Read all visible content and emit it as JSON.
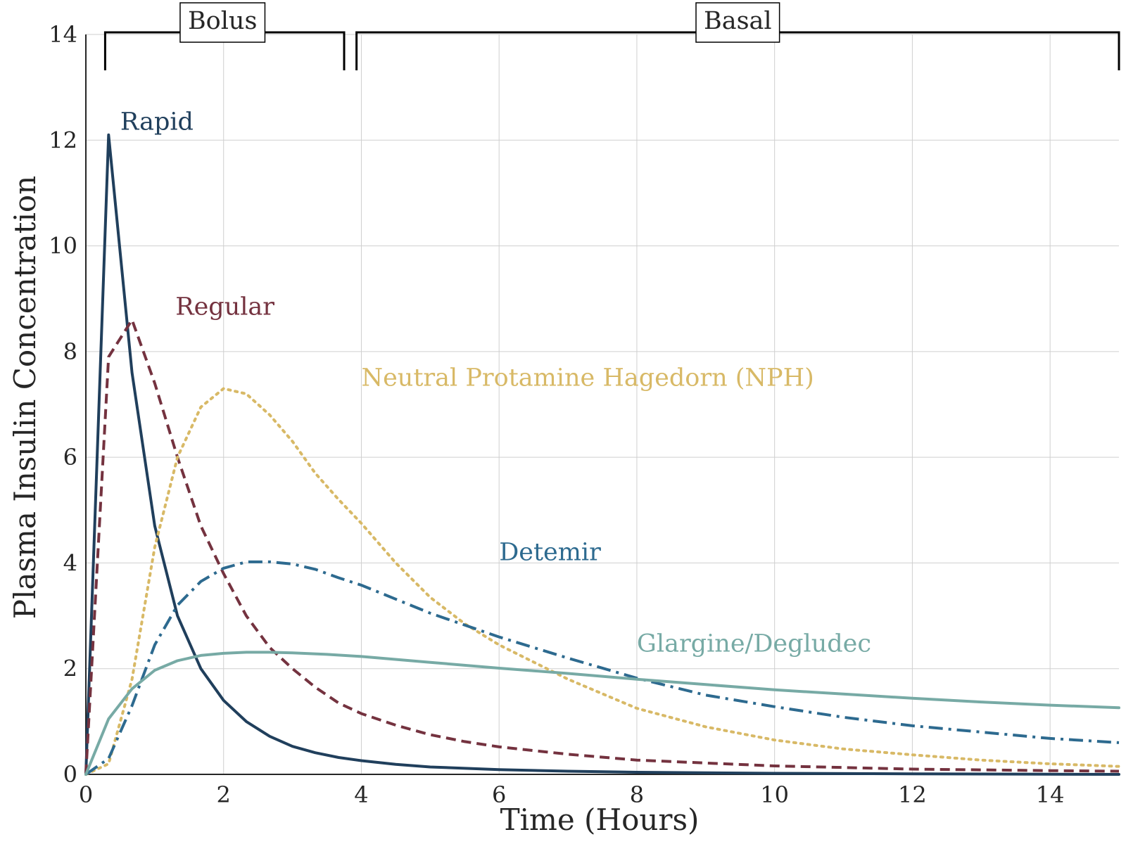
{
  "chart_data": {
    "type": "line",
    "xlabel": "Time (Hours)",
    "ylabel": "Plasma Insulin Concentration",
    "xlim": [
      0,
      15
    ],
    "ylim": [
      0,
      14
    ],
    "xticks": [
      "0",
      "2",
      "4",
      "6",
      "8",
      "10",
      "12",
      "14"
    ],
    "yticks": [
      "0",
      "2",
      "4",
      "6",
      "8",
      "10",
      "12",
      "14"
    ],
    "grid": true,
    "phases": [
      {
        "label": "Bolus",
        "start": 0.28,
        "end": 3.75
      },
      {
        "label": "Basal",
        "start": 3.93,
        "end": 15
      }
    ],
    "series": [
      {
        "name": "Rapid",
        "color": "#203f5c",
        "dash": "solid",
        "label_at": [
          0.5,
          12.2
        ],
        "x": [
          0,
          0.33,
          0.67,
          1.0,
          1.33,
          1.67,
          2.0,
          2.33,
          2.67,
          3.0,
          3.33,
          3.67,
          4.0,
          4.5,
          5.0,
          6.0,
          7.0,
          8.0,
          10.0,
          12.0,
          15.0
        ],
        "y": [
          0,
          12.1,
          7.6,
          4.7,
          3.0,
          2.0,
          1.4,
          1.0,
          0.72,
          0.53,
          0.41,
          0.32,
          0.26,
          0.19,
          0.14,
          0.09,
          0.06,
          0.04,
          0.02,
          0.01,
          0.0
        ]
      },
      {
        "name": "Regular",
        "color": "#74323f",
        "dash": "dashed",
        "label_at": [
          1.3,
          8.7
        ],
        "x": [
          0,
          0.33,
          0.67,
          1.0,
          1.33,
          1.67,
          2.0,
          2.33,
          2.67,
          3.0,
          3.33,
          3.67,
          4.0,
          4.5,
          5.0,
          5.5,
          6.0,
          7.0,
          8.0,
          10.0,
          12.0,
          14.0,
          15.0
        ],
        "y": [
          0,
          7.9,
          8.6,
          7.4,
          6.0,
          4.7,
          3.8,
          3.0,
          2.4,
          2.0,
          1.65,
          1.35,
          1.15,
          0.93,
          0.75,
          0.62,
          0.52,
          0.38,
          0.27,
          0.16,
          0.1,
          0.07,
          0.06
        ]
      },
      {
        "name": "Neutral Protamine Hagedorn (NPH)",
        "color": "#d8b966",
        "dash": "dotted",
        "label_at": [
          4.0,
          7.35
        ],
        "x": [
          0,
          0.33,
          0.67,
          1.0,
          1.33,
          1.67,
          2.0,
          2.33,
          2.67,
          3.0,
          3.33,
          3.67,
          4.0,
          4.5,
          5.0,
          5.5,
          6.0,
          7.0,
          8.0,
          9.0,
          10.0,
          11.0,
          12.0,
          13.0,
          14.0,
          15.0
        ],
        "y": [
          0,
          0.2,
          1.8,
          4.3,
          6.0,
          6.95,
          7.3,
          7.2,
          6.8,
          6.3,
          5.7,
          5.2,
          4.75,
          4.0,
          3.35,
          2.85,
          2.45,
          1.8,
          1.25,
          0.9,
          0.65,
          0.48,
          0.37,
          0.27,
          0.2,
          0.15
        ]
      },
      {
        "name": "Detemir",
        "color": "#2d6a8f",
        "dash": "dashdot",
        "label_at": [
          6.0,
          4.05
        ],
        "x": [
          0,
          0.33,
          0.67,
          1.0,
          1.33,
          1.67,
          2.0,
          2.33,
          2.67,
          3.0,
          3.33,
          3.67,
          4.0,
          5.0,
          6.0,
          7.0,
          8.0,
          9.0,
          10.0,
          11.0,
          12.0,
          13.0,
          14.0,
          15.0
        ],
        "y": [
          0,
          0.3,
          1.3,
          2.45,
          3.2,
          3.65,
          3.9,
          4.02,
          4.02,
          3.98,
          3.88,
          3.72,
          3.58,
          3.05,
          2.6,
          2.2,
          1.82,
          1.5,
          1.28,
          1.08,
          0.92,
          0.8,
          0.68,
          0.6
        ]
      },
      {
        "name": "Glargine/Degludec",
        "color": "#77aaa5",
        "dash": "solid",
        "label_at": [
          8.0,
          2.32
        ],
        "x": [
          0,
          0.33,
          0.67,
          1.0,
          1.33,
          1.67,
          2.0,
          2.33,
          2.67,
          3.0,
          3.5,
          4.0,
          5.0,
          6.0,
          7.0,
          8.0,
          9.0,
          10.0,
          11.0,
          12.0,
          13.0,
          14.0,
          15.0
        ],
        "y": [
          0,
          1.05,
          1.62,
          1.97,
          2.15,
          2.25,
          2.29,
          2.31,
          2.31,
          2.3,
          2.27,
          2.23,
          2.12,
          2.01,
          1.91,
          1.8,
          1.7,
          1.6,
          1.52,
          1.44,
          1.37,
          1.31,
          1.26
        ]
      }
    ]
  }
}
